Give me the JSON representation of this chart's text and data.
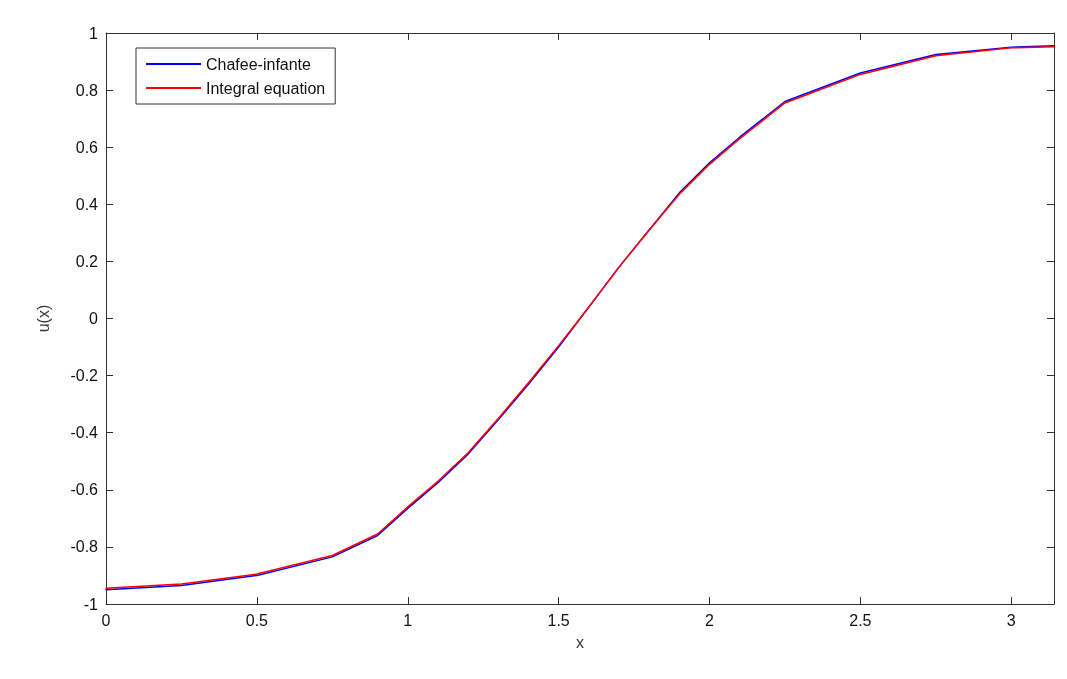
{
  "chart_data": {
    "type": "line",
    "xlabel": "x",
    "ylabel": "u(x)",
    "x": [
      0,
      0.25,
      0.5,
      0.75,
      0.9,
      1.0,
      1.1,
      1.2,
      1.3,
      1.4,
      1.5,
      1.6,
      1.7,
      1.8,
      1.9,
      2.0,
      2.1,
      2.25,
      2.5,
      2.75,
      3.0,
      3.1416
    ],
    "series": [
      {
        "name": "Chafee-infante",
        "color": "#0000ff",
        "values": [
          -0.95,
          -0.935,
          -0.9,
          -0.835,
          -0.76,
          -0.665,
          -0.575,
          -0.475,
          -0.355,
          -0.23,
          -0.1,
          0.04,
          0.18,
          0.31,
          0.44,
          0.545,
          0.635,
          0.76,
          0.86,
          0.925,
          0.95,
          0.955
        ]
      },
      {
        "name": "Integral equation",
        "color": "#ff0000",
        "values": [
          -0.945,
          -0.93,
          -0.895,
          -0.83,
          -0.755,
          -0.66,
          -0.57,
          -0.47,
          -0.35,
          -0.225,
          -0.095,
          0.04,
          0.18,
          0.31,
          0.435,
          0.54,
          0.63,
          0.755,
          0.855,
          0.92,
          0.948,
          0.952
        ]
      }
    ],
    "xlim": [
      0,
      3.1416
    ],
    "xticks": [
      0,
      0.5,
      1,
      1.5,
      2,
      2.5,
      3
    ],
    "ylim": [
      -1,
      1
    ],
    "yticks": [
      -1,
      -0.8,
      -0.6,
      -0.4,
      -0.2,
      0,
      0.2,
      0.4,
      0.6,
      0.8,
      1
    ],
    "grid": false,
    "legend": "top left",
    "marker": "none",
    "line_style": "solid"
  }
}
